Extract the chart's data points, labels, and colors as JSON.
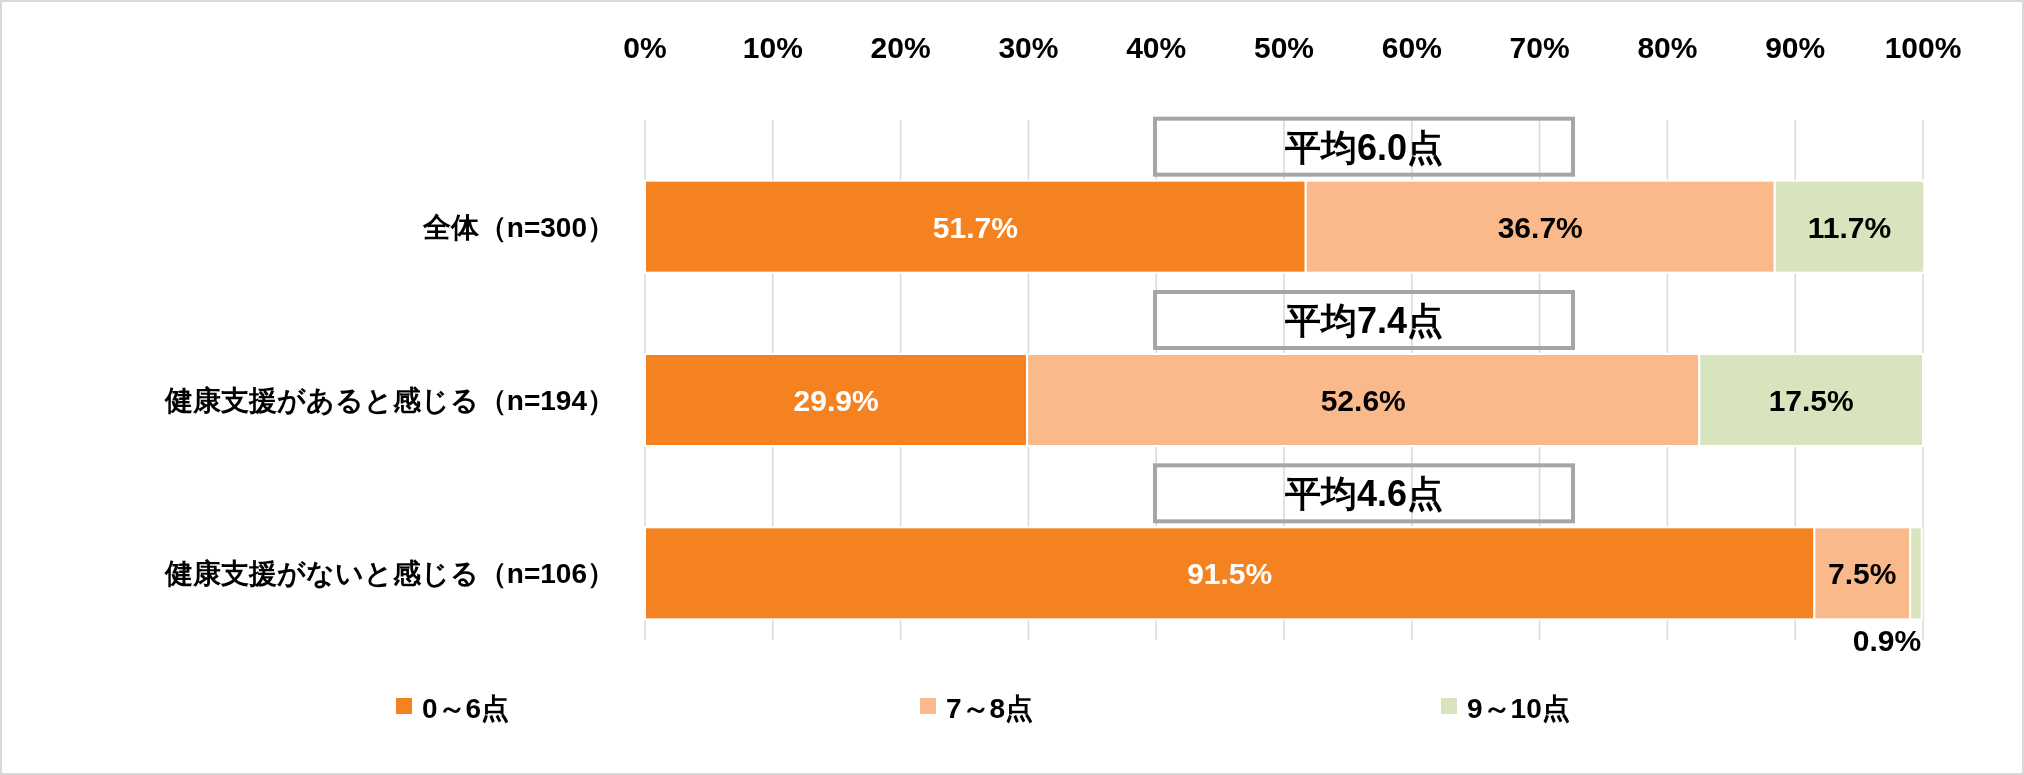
{
  "chart_data": {
    "type": "bar",
    "orientation": "horizontal",
    "stacked": true,
    "categories": [
      "全体（n=300）",
      "健康支援があると感じる（n=194）",
      "健康支援がないと感じる（n=106）"
    ],
    "series": [
      {
        "name": "0～6点",
        "color": "#f58220",
        "values": [
          51.7,
          29.9,
          91.5
        ],
        "value_labels": [
          "51.7%",
          "29.9%",
          "91.5%"
        ]
      },
      {
        "name": "7～8点",
        "color": "#f9b98a",
        "values": [
          36.7,
          52.6,
          7.5
        ],
        "value_labels": [
          "36.7%",
          "52.6%",
          "7.5%"
        ]
      },
      {
        "name": "9～10点",
        "color": "#d7e4bd",
        "values": [
          11.7,
          17.5,
          0.9
        ],
        "value_labels": [
          "11.7%",
          "17.5%",
          "0.9%"
        ]
      }
    ],
    "xlim": [
      0,
      100
    ],
    "xticks": [
      {
        "value": 0,
        "label": "0%"
      },
      {
        "value": 10,
        "label": "10%"
      },
      {
        "value": 20,
        "label": "20%"
      },
      {
        "value": 30,
        "label": "30%"
      },
      {
        "value": 40,
        "label": "40%"
      },
      {
        "value": 50,
        "label": "50%"
      },
      {
        "value": 60,
        "label": "60%"
      },
      {
        "value": 70,
        "label": "70%"
      },
      {
        "value": 80,
        "label": "80%"
      },
      {
        "value": 90,
        "label": "90%"
      },
      {
        "value": 100,
        "label": "100%"
      }
    ],
    "grid": "x",
    "legend": "bottom",
    "annotations": [
      "平均6.0点",
      "平均7.4点",
      "平均4.6点"
    ]
  }
}
